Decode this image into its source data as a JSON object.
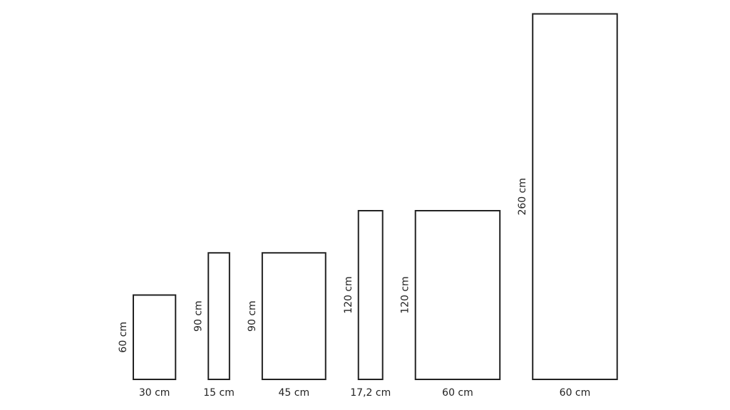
{
  "tiles": [
    {
      "height": "60 cm",
      "width": "30 cm"
    },
    {
      "height": "90 cm",
      "width": "15 cm"
    },
    {
      "height": "90 cm",
      "width": "45 cm"
    },
    {
      "height": "120 cm",
      "width": "17,2 cm"
    },
    {
      "height": "120 cm",
      "width": "60 cm"
    },
    {
      "height": "260 cm",
      "width": "60 cm"
    }
  ]
}
